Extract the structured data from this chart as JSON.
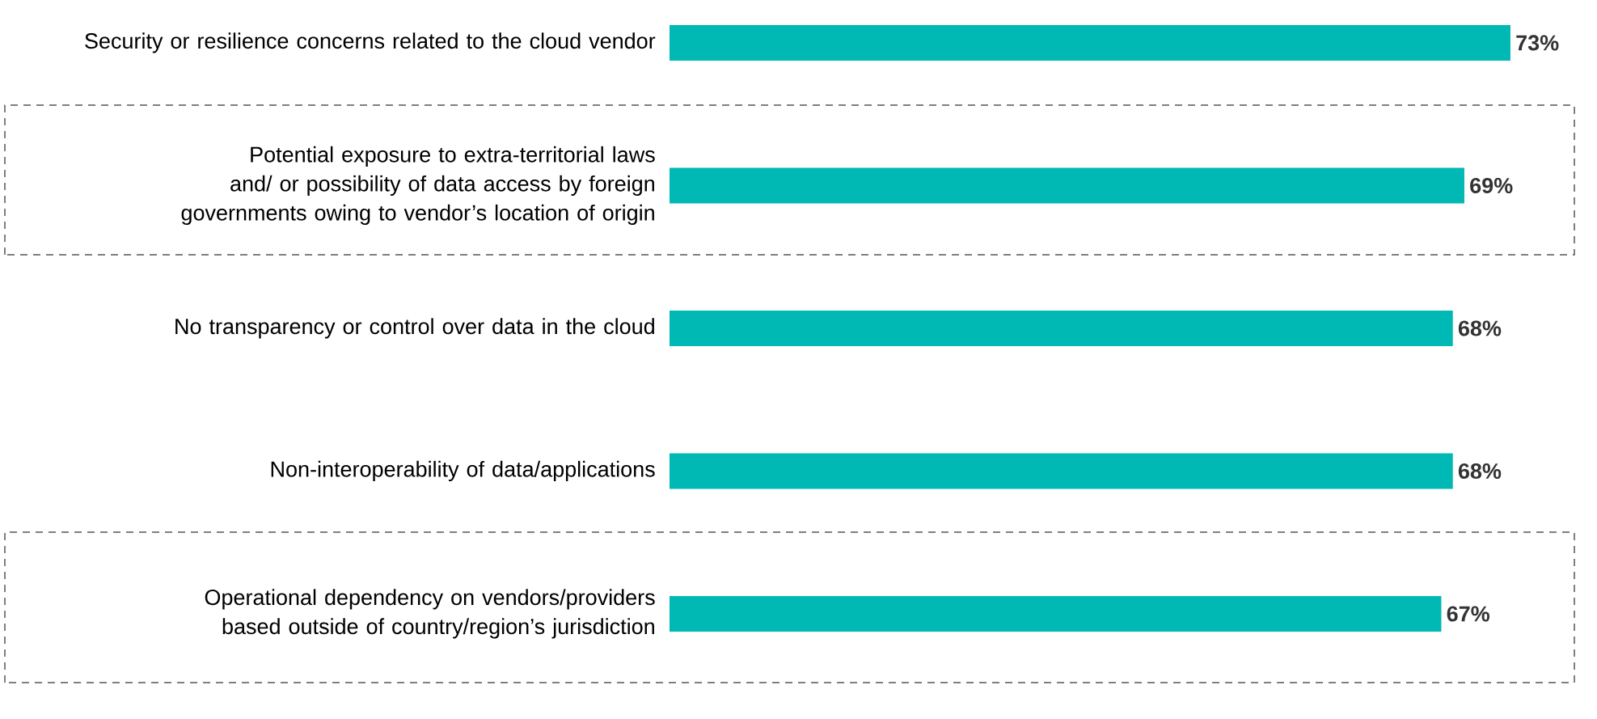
{
  "chart_data": {
    "type": "bar",
    "orientation": "horizontal",
    "categories": [
      "Security or resilience concerns related to the cloud vendor",
      "Potential exposure to extra-territorial laws and/ or possibility of data access by foreign governments owing to vendor’s location of origin",
      "No transparency or control over data in the cloud",
      "Non-interoperability of data/applications",
      "Operational dependency on vendors/providers based outside of country/region’s jurisdiction"
    ],
    "values": [
      73,
      69,
      68,
      68,
      67
    ],
    "value_labels": [
      "73%",
      "69%",
      "68%",
      "68%",
      "67%"
    ],
    "color": "#00b8b4"
  }
}
